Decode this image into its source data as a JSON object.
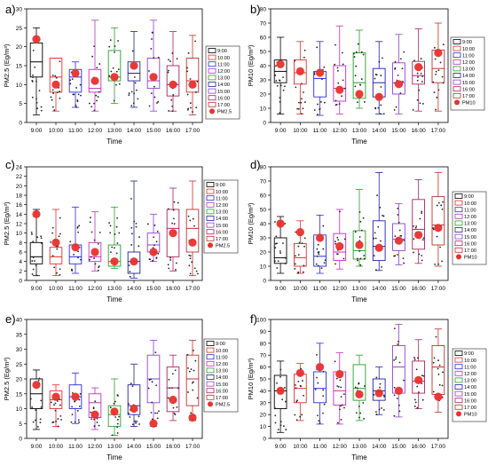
{
  "figure": {
    "hours": [
      "9:00",
      "10:00",
      "11:00",
      "12:00",
      "13:00",
      "14:00",
      "15:00",
      "16:00",
      "17:00"
    ],
    "colors": [
      "#000000",
      "#e03030",
      "#2a2ae0",
      "#c030c0",
      "#28a028",
      "#2020a0",
      "#9040d0",
      "#b02060",
      "#c03030"
    ],
    "marker_color": "#e8322e"
  },
  "chart_data": [
    {
      "panel": "a)",
      "type": "box",
      "pollutant": "PM2.5",
      "xlabel": "Time",
      "ylabel": "PM2.5 (Εg/m³)",
      "ylim": [
        0,
        30
      ],
      "yticks": [
        0,
        5,
        10,
        15,
        20,
        25,
        30
      ],
      "categories": [
        "9:00",
        "10:00",
        "11:00",
        "12:00",
        "13:00",
        "14:00",
        "15:00",
        "16:00",
        "17:00"
      ],
      "q1": [
        12,
        8,
        8,
        8,
        11,
        11,
        9,
        7,
        8
      ],
      "median": [
        16,
        12,
        12,
        9,
        12,
        13,
        11,
        10,
        11
      ],
      "q3": [
        21,
        17,
        14,
        14,
        19,
        16,
        17,
        15,
        17
      ],
      "whisker_low": [
        2,
        3,
        4,
        3,
        5,
        4,
        3,
        3,
        2
      ],
      "whisker_high": [
        25,
        17,
        16,
        27,
        25,
        24,
        27,
        24,
        23
      ],
      "mean": [
        22,
        10,
        13,
        11,
        12,
        15,
        12,
        10,
        10
      ],
      "legend": [
        "9:00",
        "10:00",
        "11:00",
        "12:00",
        "13:00",
        "14:00",
        "15:00",
        "16:00",
        "17:00",
        "PM2.5"
      ]
    },
    {
      "panel": "b)",
      "type": "box",
      "pollutant": "PM10",
      "xlabel": "Time",
      "ylabel": "PM10 (Εg/m³)",
      "ylim": [
        0,
        80
      ],
      "yticks": [
        0,
        10,
        20,
        30,
        40,
        50,
        60,
        70,
        80
      ],
      "categories": [
        "9:00",
        "10:00",
        "11:00",
        "12:00",
        "13:00",
        "14:00",
        "15:00",
        "16:00",
        "17:00"
      ],
      "q1": [
        28,
        27,
        18,
        15,
        17,
        18,
        20,
        27,
        28
      ],
      "median": [
        36,
        35,
        31,
        24,
        28,
        28,
        28,
        33,
        38
      ],
      "q3": [
        44,
        44,
        36,
        40,
        49,
        38,
        42,
        43,
        51
      ],
      "whisker_low": [
        6,
        6,
        5,
        6,
        10,
        6,
        6,
        8,
        8
      ],
      "whisker_high": [
        60,
        57,
        57,
        68,
        65,
        57,
        62,
        66,
        70
      ],
      "mean": [
        41,
        36,
        35,
        23,
        20,
        18,
        27,
        39,
        49
      ],
      "legend": [
        "9:00",
        "10:00",
        "11:00",
        "12:00",
        "13:00",
        "14:00",
        "15:00",
        "16:00",
        "17:00",
        "PM10"
      ]
    },
    {
      "panel": "c)",
      "type": "box",
      "pollutant": "PM2.5",
      "xlabel": "Time",
      "ylabel": "PM2.5 (Εg/m³)",
      "ylim": [
        0,
        24
      ],
      "yticks": [
        0,
        2,
        4,
        6,
        8,
        10,
        12,
        14,
        16,
        18,
        20,
        22,
        24
      ],
      "categories": [
        "9:00",
        "10:00",
        "11:00",
        "12:00",
        "13:00",
        "14:00",
        "15:00",
        "16:00",
        "17:00"
      ],
      "q1": [
        3.5,
        3.5,
        3.5,
        4,
        3,
        1.5,
        6,
        5,
        6
      ],
      "median": [
        5,
        5,
        5,
        5,
        4,
        4,
        7.5,
        11,
        11
      ],
      "q3": [
        8,
        7,
        7.5,
        8,
        7.5,
        6,
        10,
        15,
        15
      ],
      "whisker_low": [
        1,
        1,
        1.5,
        2,
        2.5,
        0.5,
        4,
        2,
        1
      ],
      "whisker_high": [
        15,
        15,
        15.5,
        14.5,
        15.5,
        21,
        14,
        19.5,
        21
      ],
      "mean": [
        14,
        8,
        7,
        6,
        4,
        4,
        6,
        10,
        8
      ],
      "legend": [
        "9:00",
        "10:00",
        "11:00",
        "12:00",
        "13:00",
        "14:00",
        "15:00",
        "16:00",
        "17:00",
        "PM2.5"
      ]
    },
    {
      "panel": "d)",
      "type": "box",
      "pollutant": "PM10",
      "xlabel": "Time",
      "ylabel": "PM10 (Εg/m³)",
      "ylim": [
        0,
        80
      ],
      "yticks": [
        0,
        10,
        20,
        30,
        40,
        50,
        60,
        70,
        80
      ],
      "categories": [
        "9:00",
        "10:00",
        "11:00",
        "12:00",
        "13:00",
        "14:00",
        "15:00",
        "16:00",
        "17:00"
      ],
      "q1": [
        12,
        10,
        10,
        14,
        15,
        14,
        21,
        22,
        25
      ],
      "median": [
        16,
        16,
        17,
        20,
        21,
        24,
        29,
        36,
        39
      ],
      "q3": [
        30,
        26,
        32,
        33,
        35,
        42,
        40,
        57,
        59
      ],
      "whisker_low": [
        5,
        5,
        5,
        8,
        10,
        7,
        11,
        12,
        10
      ],
      "whisker_high": [
        45,
        42,
        46,
        50,
        64,
        76,
        54,
        71,
        76
      ],
      "mean": [
        40,
        34,
        30,
        24,
        25,
        23,
        28,
        32,
        37
      ],
      "legend": [
        "9:00",
        "10:00",
        "11:00",
        "12:00",
        "13:00",
        "14:00",
        "15:00",
        "16:00",
        "17:00",
        "PM10"
      ]
    },
    {
      "panel": "e)",
      "type": "box",
      "pollutant": "PM2.5",
      "xlabel": "Time",
      "ylabel": "PM2.5 (Εg/m³)",
      "ylim": [
        0,
        40
      ],
      "yticks": [
        0,
        5,
        10,
        15,
        20,
        25,
        30,
        35,
        40
      ],
      "categories": [
        "9:00",
        "10:00",
        "11:00",
        "12:00",
        "13:00",
        "14:00",
        "15:00",
        "16:00",
        "17:00"
      ],
      "q1": [
        10,
        10,
        10,
        7,
        4,
        8,
        12,
        9,
        11
      ],
      "median": [
        15,
        13,
        14,
        12,
        8,
        11,
        20,
        17,
        20
      ],
      "q3": [
        20,
        16,
        18,
        15,
        11,
        18,
        28,
        24,
        28
      ],
      "whisker_low": [
        3,
        4,
        5,
        3,
        1,
        4,
        4,
        6,
        6
      ],
      "whisker_high": [
        23,
        18,
        22,
        17,
        20,
        25,
        33,
        28,
        33
      ],
      "mean": [
        18,
        14,
        14,
        8,
        9,
        10,
        5,
        13,
        7
      ],
      "legend": [
        "9:00",
        "10:00",
        "11:00",
        "12:00",
        "13:00",
        "14:00",
        "15:00",
        "16:00",
        "17:00",
        "PM2.5"
      ]
    },
    {
      "panel": "f)",
      "type": "box",
      "pollutant": "PM10",
      "xlabel": "Time",
      "ylabel": "PM10 (Εg/m³)",
      "ylim": [
        0,
        100
      ],
      "yticks": [
        0,
        10,
        20,
        30,
        40,
        50,
        60,
        70,
        80,
        90,
        100
      ],
      "categories": [
        "9:00",
        "10:00",
        "11:00",
        "12:00",
        "13:00",
        "14:00",
        "15:00",
        "16:00",
        "17:00"
      ],
      "q1": [
        25,
        30,
        30,
        28,
        32,
        32,
        38,
        38,
        37
      ],
      "median": [
        40,
        42,
        42,
        40,
        42,
        40,
        60,
        48,
        60
      ],
      "q3": [
        53,
        54,
        56,
        56,
        62,
        50,
        78,
        65,
        78
      ],
      "whisker_low": [
        5,
        15,
        12,
        12,
        15,
        20,
        18,
        25,
        22
      ],
      "whisker_high": [
        65,
        63,
        80,
        72,
        70,
        60,
        96,
        83,
        92
      ],
      "mean": [
        40,
        55,
        60,
        54,
        37,
        38,
        40,
        49,
        35
      ],
      "legend": [
        "9:00",
        "10:00",
        "11:00",
        "12:00",
        "13:00",
        "14:00",
        "15:00",
        "16:00",
        "17:00",
        "PM10"
      ]
    }
  ]
}
